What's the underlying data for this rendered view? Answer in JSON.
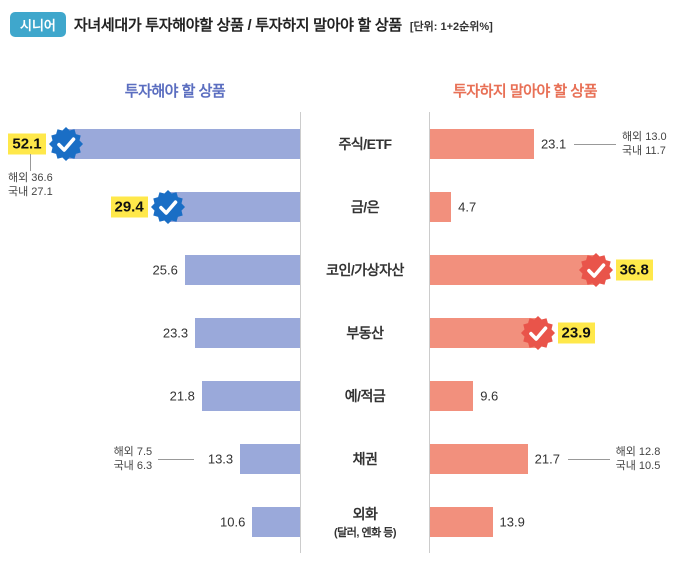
{
  "badge": {
    "label": "시니어"
  },
  "chart_data": {
    "type": "bar",
    "orientation": "horizontal-diverging",
    "title": "자녀세대가 투자해야할 상품 / 투자하지 말아야 할 상품",
    "unit_note": "[단위: 1+2순위%]",
    "value_unit": "%",
    "xlim": [
      0,
      55
    ],
    "grid": false,
    "legend_position": "column-headers",
    "categories": [
      "주식/ETF",
      "금/은",
      "코인/가상자산",
      "부동산",
      "예/적금",
      "채권",
      "외화"
    ],
    "category_sublabels": [
      "",
      "",
      "",
      "",
      "",
      "",
      "(달러, 엔화 등)"
    ],
    "series": [
      {
        "name": "투자해야 할 상품",
        "side": "left",
        "color": "#9aa9da",
        "values": [
          52.1,
          29.4,
          25.6,
          23.3,
          21.8,
          13.3,
          10.6
        ],
        "highlighted": [
          true,
          true,
          false,
          false,
          false,
          false,
          false
        ]
      },
      {
        "name": "투자하지 말아야 할 상품",
        "side": "right",
        "color": "#f2907d",
        "values": [
          23.1,
          4.7,
          36.8,
          23.9,
          9.6,
          21.7,
          13.9
        ],
        "highlighted": [
          false,
          false,
          true,
          true,
          false,
          false,
          false
        ]
      }
    ],
    "annotations": [
      {
        "series": 0,
        "row": 0,
        "placement": "below",
        "lines": [
          "해외 36.6",
          "국내 27.1"
        ]
      },
      {
        "series": 0,
        "row": 5,
        "placement": "inline",
        "lines": [
          "해외 7.5",
          "국내 6.3"
        ]
      },
      {
        "series": 1,
        "row": 0,
        "placement": "inline",
        "lines": [
          "해외 13.0",
          "국내 11.7"
        ]
      },
      {
        "series": 1,
        "row": 5,
        "placement": "inline",
        "lines": [
          "해외 12.8",
          "국내 10.5"
        ]
      }
    ]
  },
  "colors": {
    "badge_bg": "#3fa7cc",
    "left_accent": "#5b6ec0",
    "right_accent": "#e87056",
    "left_bar": "#9aa9da",
    "right_bar": "#f2907d",
    "check_left": "#1a6ec5",
    "check_right": "#e9544a",
    "highlight_bg": "#ffe84a",
    "separator": "#cccccc",
    "annotation_line": "#999999"
  }
}
